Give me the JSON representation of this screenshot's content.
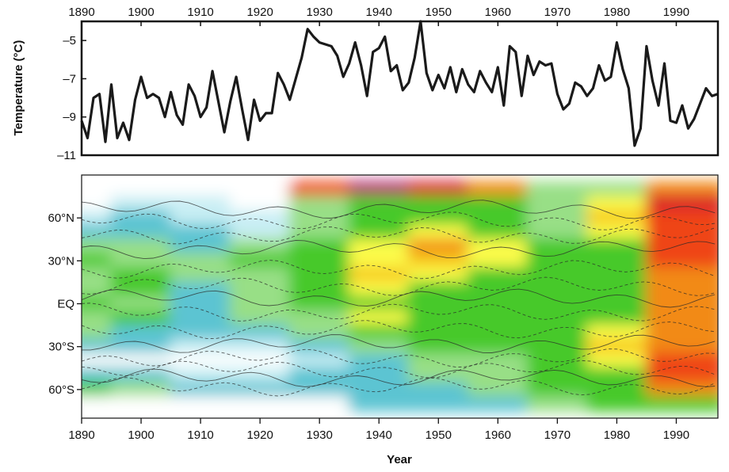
{
  "chart_data": [
    {
      "type": "line",
      "title": "",
      "xlabel": "",
      "ylabel": "Temperature (°C)",
      "xlim": [
        1890,
        1997
      ],
      "ylim": [
        -11,
        -4
      ],
      "x_ticks": [
        "1890",
        "1900",
        "1910",
        "1920",
        "1930",
        "1940",
        "1950",
        "1960",
        "1970",
        "1980",
        "1990"
      ],
      "y_ticks": [
        "–5",
        "–7",
        "–9",
        "–11"
      ],
      "x_tick_values": [
        1890,
        1900,
        1910,
        1920,
        1930,
        1940,
        1950,
        1960,
        1970,
        1980,
        1990
      ],
      "y_tick_values": [
        -5,
        -7,
        -9,
        -11
      ],
      "x_axis_position": "top",
      "grid": false,
      "series": [
        {
          "color": "#1a1a1a",
          "x": [
            1890,
            1891,
            1892,
            1893,
            1894,
            1895,
            1896,
            1897,
            1898,
            1899,
            1900,
            1901,
            1902,
            1903,
            1904,
            1905,
            1906,
            1907,
            1908,
            1909,
            1910,
            1911,
            1912,
            1913,
            1914,
            1915,
            1916,
            1917,
            1918,
            1919,
            1920,
            1921,
            1922,
            1923,
            1924,
            1925,
            1926,
            1927,
            1928,
            1929,
            1930,
            1931,
            1932,
            1933,
            1934,
            1935,
            1936,
            1937,
            1938,
            1939,
            1940,
            1941,
            1942,
            1943,
            1944,
            1945,
            1946,
            1947,
            1948,
            1949,
            1950,
            1951,
            1952,
            1953,
            1954,
            1955,
            1956,
            1957,
            1958,
            1959,
            1960,
            1961,
            1962,
            1963,
            1964,
            1965,
            1966,
            1967,
            1968,
            1969,
            1970,
            1971,
            1972,
            1973,
            1974,
            1975,
            1976,
            1977,
            1978,
            1979,
            1980,
            1981,
            1982,
            1983,
            1984,
            1985,
            1986,
            1987,
            1988,
            1989,
            1990,
            1991,
            1992,
            1993,
            1994,
            1995,
            1996,
            1997
          ],
          "values": [
            -9.2,
            -10.1,
            -8.0,
            -7.8,
            -10.3,
            -7.3,
            -10.1,
            -9.3,
            -10.2,
            -8.1,
            -6.9,
            -8.0,
            -7.8,
            -8.0,
            -9.0,
            -7.7,
            -8.9,
            -9.4,
            -7.3,
            -7.9,
            -9.0,
            -8.5,
            -6.6,
            -8.2,
            -9.8,
            -8.2,
            -6.9,
            -8.6,
            -10.2,
            -8.1,
            -9.2,
            -8.8,
            -8.8,
            -6.7,
            -7.3,
            -8.1,
            -7.0,
            -5.9,
            -4.4,
            -4.8,
            -5.1,
            -5.2,
            -5.3,
            -5.8,
            -6.9,
            -6.2,
            -5.1,
            -6.3,
            -7.9,
            -5.6,
            -5.4,
            -4.8,
            -6.6,
            -6.3,
            -7.6,
            -7.2,
            -5.9,
            -4.0,
            -6.7,
            -7.6,
            -6.8,
            -7.5,
            -6.4,
            -7.7,
            -6.5,
            -7.3,
            -7.7,
            -6.6,
            -7.2,
            -7.7,
            -6.4,
            -8.4,
            -5.3,
            -5.6,
            -7.9,
            -5.8,
            -6.8,
            -6.1,
            -6.3,
            -6.2,
            -7.8,
            -8.6,
            -8.3,
            -7.2,
            -7.4,
            -7.9,
            -7.5,
            -6.3,
            -7.1,
            -6.9,
            -5.1,
            -6.5,
            -7.5,
            -10.5,
            -9.6,
            -5.3,
            -7.1,
            -8.4,
            -6.2,
            -9.2,
            -9.3,
            -8.4,
            -9.6,
            -9.1,
            -8.3,
            -7.5,
            -7.9,
            -7.8
          ]
        }
      ]
    },
    {
      "type": "heatmap",
      "title": "",
      "xlabel": "Year",
      "ylabel": "",
      "xlim": [
        1890,
        1997
      ],
      "ylim": [
        -80,
        90
      ],
      "x_ticks": [
        "1890",
        "1900",
        "1910",
        "1920",
        "1930",
        "1940",
        "1950",
        "1960",
        "1970",
        "1980",
        "1990"
      ],
      "y_ticks": [
        "60°N",
        "30°N",
        "EQ",
        "30°S",
        "60°S"
      ],
      "x_tick_values": [
        1890,
        1900,
        1910,
        1920,
        1930,
        1940,
        1950,
        1960,
        1970,
        1980,
        1990
      ],
      "y_tick_values": [
        60,
        30,
        0,
        -30,
        -60
      ],
      "contours": "filled, dashed lines for negative levels",
      "grid": false,
      "colorscale_ordered_cold_to_warm": [
        "#ffffff",
        "#c8eef4",
        "#5cc4d2",
        "#98df86",
        "#46c92a",
        "#fbfb4a",
        "#f6c81e",
        "#f28a12",
        "#ef4418",
        "#d8182e",
        "#b4236c",
        "#c467c0"
      ],
      "cells_order": "rows from 90 to -80 latitude in steps of 10; columns 1890 to 1990 in steps of 10; values are color-level indices (0 cold … 11 warm, -1 no data)",
      "lat": [
        80,
        70,
        60,
        50,
        40,
        30,
        20,
        10,
        0,
        -10,
        -20,
        -30,
        -40,
        -50,
        -60,
        -70
      ],
      "years": [
        1890,
        1900,
        1910,
        1920,
        1930,
        1940,
        1950,
        1960,
        1970,
        1980,
        1990
      ],
      "z": [
        [
          -1,
          -1,
          -1,
          -1,
          8,
          10,
          9,
          7,
          3,
          3,
          7
        ],
        [
          0,
          1,
          1,
          0,
          3,
          4,
          4,
          4,
          3,
          5,
          9
        ],
        [
          1,
          2,
          1,
          1,
          3,
          4,
          4,
          4,
          3,
          6,
          8
        ],
        [
          2,
          2,
          2,
          1,
          3,
          4,
          5,
          4,
          3,
          5,
          8
        ],
        [
          3,
          3,
          2,
          3,
          4,
          5,
          7,
          5,
          4,
          4,
          8
        ],
        [
          4,
          3,
          3,
          4,
          4,
          5,
          6,
          5,
          4,
          4,
          8
        ],
        [
          3,
          4,
          3,
          3,
          4,
          6,
          5,
          4,
          4,
          4,
          7
        ],
        [
          3,
          4,
          2,
          3,
          4,
          5,
          4,
          4,
          4,
          4,
          7
        ],
        [
          4,
          3,
          2,
          3,
          4,
          4,
          4,
          4,
          4,
          4,
          7
        ],
        [
          3,
          4,
          2,
          3,
          3,
          5,
          4,
          4,
          4,
          4,
          7
        ],
        [
          3,
          2,
          2,
          2,
          3,
          4,
          4,
          4,
          4,
          5,
          7
        ],
        [
          2,
          2,
          1,
          1,
          2,
          3,
          4,
          4,
          4,
          6,
          7
        ],
        [
          0,
          0,
          0,
          0,
          1,
          2,
          3,
          3,
          4,
          5,
          8
        ],
        [
          2,
          2,
          1,
          1,
          2,
          2,
          3,
          3,
          4,
          4,
          8
        ],
        [
          4,
          3,
          2,
          2,
          2,
          2,
          2,
          3,
          4,
          4,
          7
        ],
        [
          -1,
          -1,
          -1,
          -1,
          -1,
          2,
          2,
          2,
          3,
          4,
          4
        ]
      ]
    }
  ]
}
